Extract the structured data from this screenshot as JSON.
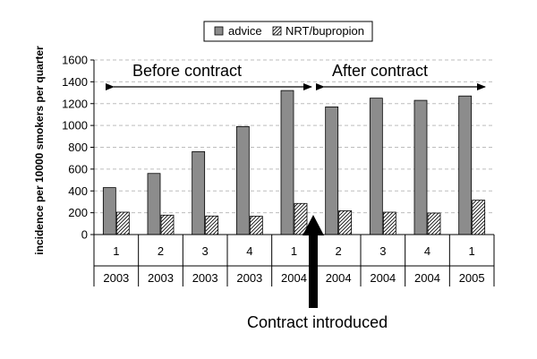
{
  "chart_data": {
    "type": "bar",
    "ylabel": "incidence per 10000 smokers per quarter",
    "ylim": [
      0,
      1600
    ],
    "yticks": [
      0,
      200,
      400,
      600,
      800,
      1000,
      1200,
      1400,
      1600
    ],
    "categories": [
      {
        "quarter": "1",
        "year": "2003"
      },
      {
        "quarter": "2",
        "year": "2003"
      },
      {
        "quarter": "3",
        "year": "2003"
      },
      {
        "quarter": "4",
        "year": "2003"
      },
      {
        "quarter": "1",
        "year": "2004"
      },
      {
        "quarter": "2",
        "year": "2004"
      },
      {
        "quarter": "3",
        "year": "2004"
      },
      {
        "quarter": "4",
        "year": "2004"
      },
      {
        "quarter": "1",
        "year": "2005"
      }
    ],
    "series": [
      {
        "name": "advice",
        "color": "#8c8c8c",
        "pattern": "solid",
        "values": [
          430,
          560,
          760,
          990,
          1320,
          1170,
          1250,
          1230,
          1270
        ]
      },
      {
        "name": "NRT/bupropion",
        "color": "#ffffff",
        "pattern": "hatch",
        "values": [
          205,
          178,
          170,
          168,
          285,
          218,
          205,
          197,
          315
        ]
      }
    ],
    "grid": true,
    "legend_position": "top-center",
    "annotations": {
      "before": "Before contract",
      "after": "After contract",
      "contract": "Contract introduced"
    }
  }
}
